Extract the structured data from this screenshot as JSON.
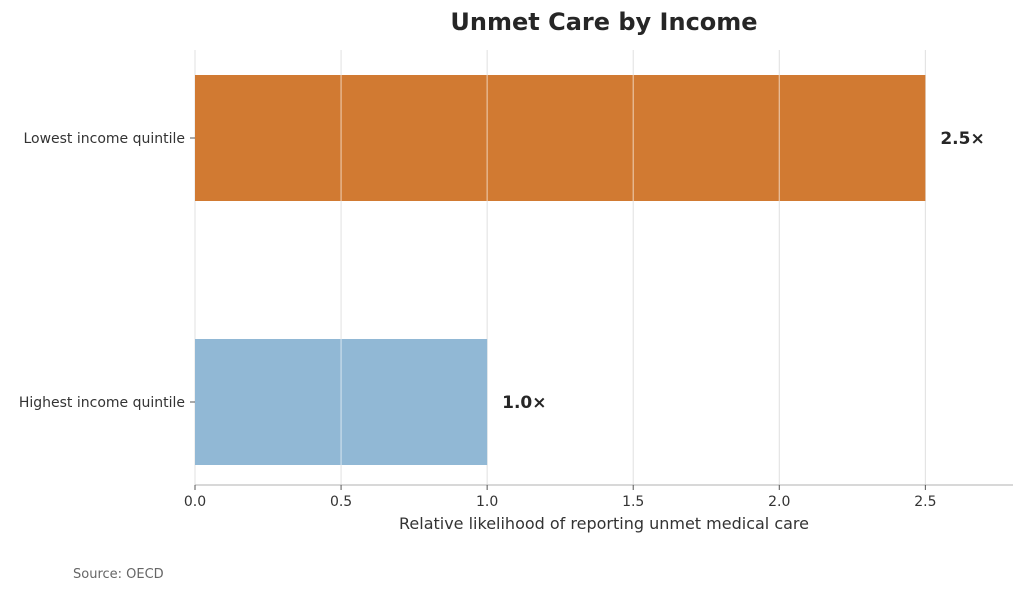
{
  "chart_data": {
    "type": "bar",
    "orientation": "horizontal",
    "title": "Unmet Care by Income",
    "xlabel": "Relative likelihood of reporting unmet medical care",
    "ylabel": "",
    "xlim": [
      0,
      2.8
    ],
    "x_ticks": [
      0,
      0.5,
      1,
      1.5,
      2,
      2.5
    ],
    "x_tick_labels": [
      "0.0",
      "0.5",
      "1.0",
      "1.5",
      "2.0",
      "2.5"
    ],
    "categories": [
      "Lowest income quintile",
      "Highest income quintile"
    ],
    "values": [
      2.5,
      1.0
    ],
    "data_labels": [
      "2.5×",
      "1.0×"
    ],
    "colors": [
      "#d17a32",
      "#91b8d5"
    ],
    "grid": "vertical",
    "legend": "none"
  },
  "source": "Source: OECD"
}
